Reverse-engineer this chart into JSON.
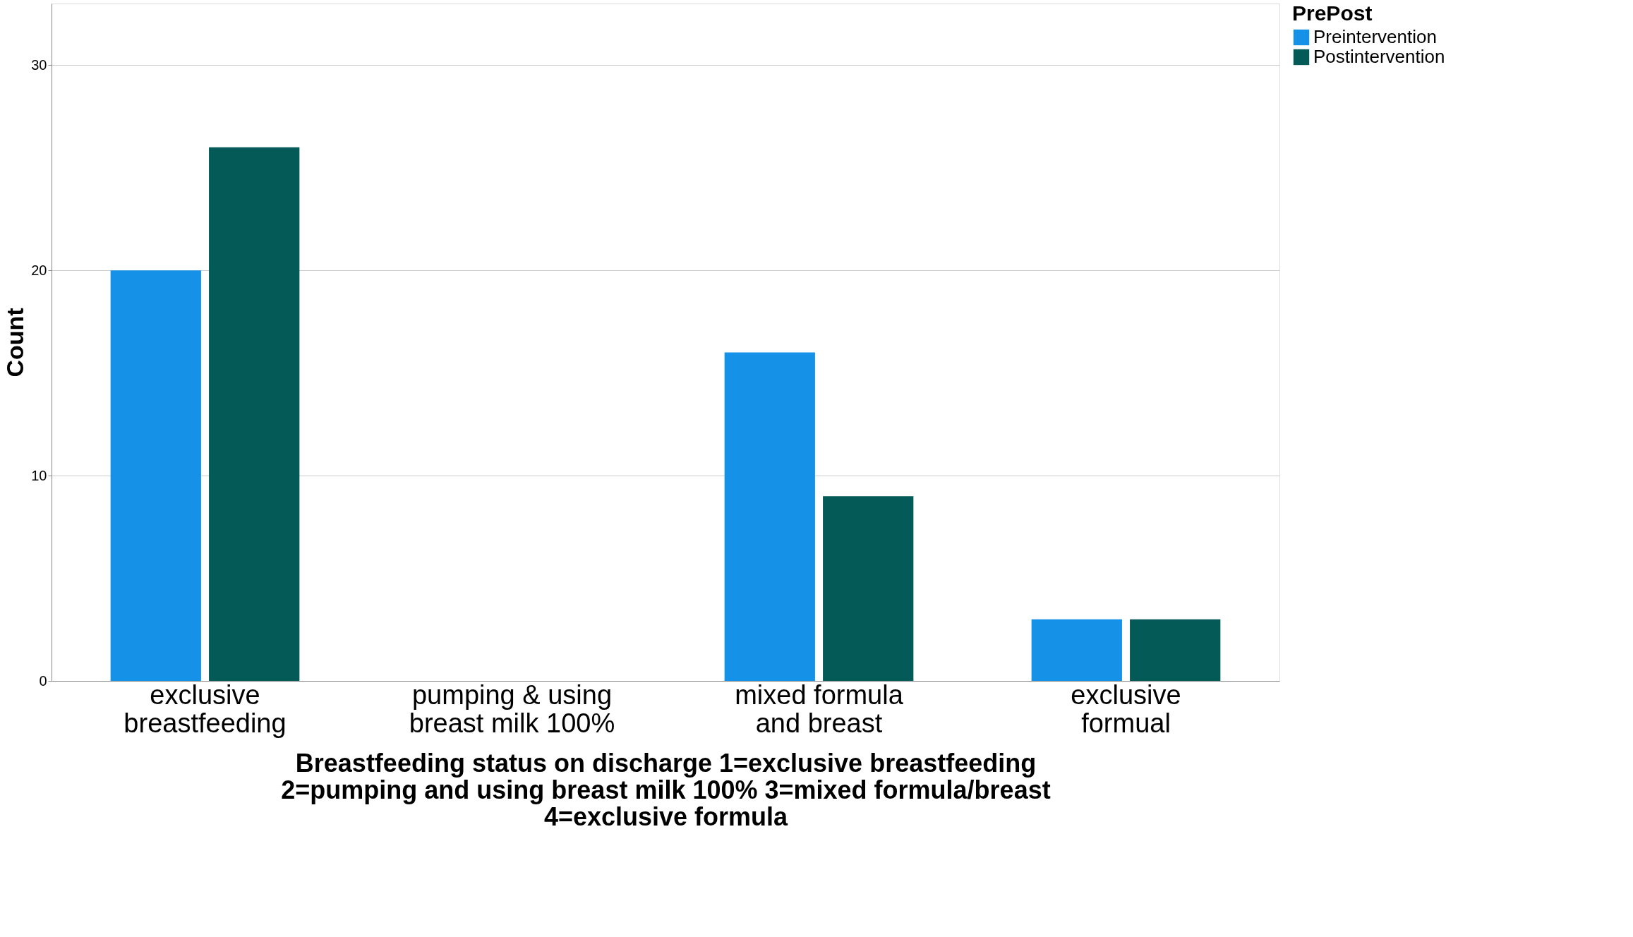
{
  "chart_data": {
    "type": "bar",
    "categories": [
      "exclusive breastfeeding",
      "pumping & using breast milk 100%",
      "mixed formula and breast",
      "exclusive formual"
    ],
    "series": [
      {
        "name": "Preintervention",
        "color": "#1591e8",
        "values": [
          20,
          0,
          16,
          3
        ]
      },
      {
        "name": "Postintervention",
        "color": "#035a56",
        "values": [
          26,
          0,
          9,
          3
        ]
      }
    ],
    "xlabel": "Breastfeeding status on discharge  1=exclusive breastfeeding 2=pumping and using breast milk 100% 3=mixed formula/breast 4=exclusive formula",
    "ylabel": "Count",
    "legend_title": "PrePost",
    "legend": "top right",
    "ylim": [
      0,
      33
    ],
    "yticks": [
      0,
      10,
      20,
      30
    ],
    "grid": "y"
  }
}
